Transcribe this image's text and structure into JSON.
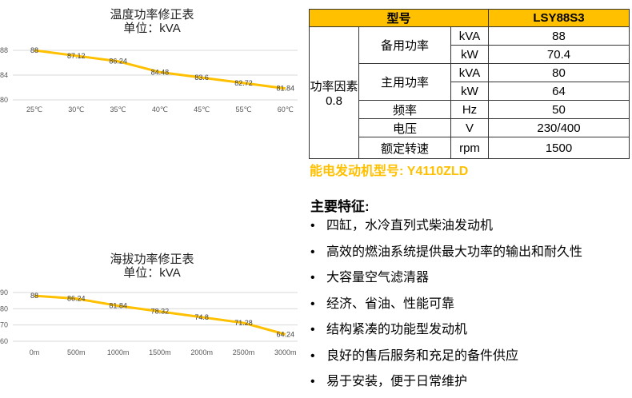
{
  "chart_data": [
    {
      "type": "line",
      "title": "温度功率修正表",
      "subtitle": "单位：kVA",
      "categories": [
        "25℃",
        "30℃",
        "35℃",
        "40℃",
        "45℃",
        "55℃",
        "60℃"
      ],
      "values": [
        88,
        87.12,
        86.24,
        84.48,
        83.6,
        82.72,
        81.84
      ],
      "yticks": [
        80,
        84,
        88
      ],
      "ylim": [
        80,
        88
      ],
      "color": "#ffc000",
      "grid": true
    },
    {
      "type": "line",
      "title": "海拔功率修正表",
      "subtitle": "单位：kVA",
      "categories": [
        "0m",
        "500m",
        "1000m",
        "1500m",
        "2000m",
        "2500m",
        "3000m"
      ],
      "values": [
        88,
        86.24,
        81.84,
        78.32,
        74.8,
        71.28,
        64.24
      ],
      "yticks": [
        60,
        70,
        80,
        90
      ],
      "ylim": [
        60,
        90
      ],
      "color": "#ffc000",
      "grid": true
    }
  ],
  "table": {
    "header": {
      "label": "型号",
      "value": "LSY88S3"
    },
    "power_factor": "功率因素\n0.8",
    "rows": {
      "standby": {
        "label": "备用功率",
        "kva_unit": "kVA",
        "kva": "88",
        "kw_unit": "kW",
        "kw": "70.4"
      },
      "prime": {
        "label": "主用功率",
        "kva_unit": "kVA",
        "kva": "80",
        "kw_unit": "kW",
        "kw": "64"
      },
      "freq": {
        "label": "频率",
        "unit": "Hz",
        "value": "50"
      },
      "volt": {
        "label": "电压",
        "unit": "V",
        "value": "230/400"
      },
      "speed": {
        "label": "额定转速",
        "unit": "rpm",
        "value": "1500"
      }
    }
  },
  "engine": "能电发动机型号: Y4110ZLD",
  "features": {
    "title": "主要特征:",
    "bullet": "•",
    "items": [
      "四缸，水冷直列式柴油发动机",
      "高效的燃油系统提供最大功率的输出和耐久性",
      "大容量空气滤清器",
      "经济、省油、性能可靠",
      "结构紧凑的功能型发动机",
      "良好的售后服务和充足的备件供应",
      "易于安装，便于日常维护"
    ]
  }
}
